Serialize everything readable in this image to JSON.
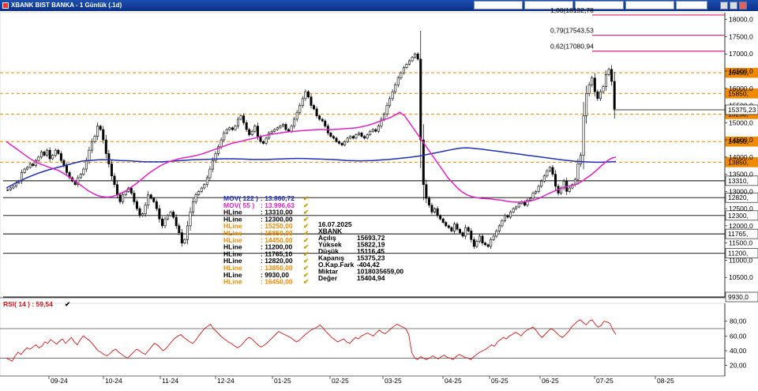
{
  "window": {
    "title": "XBANK BIST BANKA - 1 Günlük (.1d)",
    "toolbar_fields": [
      "",
      "",
      "",
      "",
      "",
      "",
      "",
      ""
    ]
  },
  "colors": {
    "candle": "#000000",
    "mov122": "#1f2fb8",
    "mov55": "#e020c8",
    "fib": "#e0207a",
    "hline_black": "#000000",
    "hline_orange": "#f08a00",
    "rsi": "#d01818",
    "last_price_line": "#000000"
  },
  "indicators": {
    "mov122": {
      "label": "MOV( 122 )",
      "value": "13.860,72"
    },
    "mov55": {
      "label": "MOV( 55 )",
      "value": "13.996,63"
    },
    "hlines": [
      {
        "label": "HLine",
        "value": "13310,00",
        "color": "black"
      },
      {
        "label": "HLine",
        "value": "12300,00",
        "color": "black"
      },
      {
        "label": "HLine",
        "value": "15250,00",
        "color": "orange"
      },
      {
        "label": "HLine",
        "value": "15850,00",
        "color": "orange"
      },
      {
        "label": "HLine",
        "value": "14450,00",
        "color": "orange"
      },
      {
        "label": "HLine",
        "value": "11200,00",
        "color": "black"
      },
      {
        "label": "HLine",
        "value": "11765,10",
        "color": "black"
      },
      {
        "label": "HLine",
        "value": "12820,00",
        "color": "black"
      },
      {
        "label": "HLine",
        "value": "13850,00",
        "color": "orange"
      },
      {
        "label": "HLine",
        "value": "9930,00",
        "color": "black"
      },
      {
        "label": "HLine",
        "value": "16450,00",
        "color": "orange"
      }
    ],
    "check": "✔"
  },
  "ohlc_box": {
    "date": "16.07.2025",
    "symbol": "XBANK",
    "rows": [
      {
        "label": "Açılış",
        "value": "15693,72"
      },
      {
        "label": "Yüksek",
        "value": "15822,19"
      },
      {
        "label": "Düşük",
        "value": "15116,45"
      },
      {
        "label": "Kapanış",
        "value": "15375,23"
      },
      {
        "label": "O.Kap.Fark",
        "value": "-404,42"
      },
      {
        "label": "Miktar",
        "value": "1018035659,00"
      },
      {
        "label": "Değer",
        "value": "15404,94"
      }
    ]
  },
  "rsi_label": "RSI( 14 ) : 59,54",
  "chart_data": {
    "type": "candlestick",
    "price_axis": {
      "range": [
        9930,
        18200
      ],
      "ticks": [
        {
          "v": 18000,
          "label": "18000,0"
        },
        {
          "v": 17500,
          "label": "17500,0"
        },
        {
          "v": 17000,
          "label": "17000,0"
        },
        {
          "v": 16500,
          "label": "16500,0"
        },
        {
          "v": 16000,
          "label": "16000,0"
        },
        {
          "v": 15500,
          "label": "15500,0"
        },
        {
          "v": 15000,
          "label": "15000,0"
        },
        {
          "v": 14500,
          "label": "14500,0"
        },
        {
          "v": 14000,
          "label": "14000,0"
        },
        {
          "v": 13500,
          "label": "13500,0"
        },
        {
          "v": 13000,
          "label": "13000,0"
        },
        {
          "v": 12500,
          "label": "12500,0"
        },
        {
          "v": 12000,
          "label": "12000,0"
        },
        {
          "v": 11500,
          "label": "11500,0"
        },
        {
          "v": 11000,
          "label": "11000,0"
        },
        {
          "v": 10500,
          "label": "10500,0"
        }
      ],
      "current_price_label": "15375,23",
      "current_price": 15375.23
    },
    "hline_levels": [
      {
        "v": 16450,
        "label": "16450,",
        "color": "orange"
      },
      {
        "v": 15850,
        "label": "15850,",
        "color": "orange"
      },
      {
        "v": 15250,
        "label": "15250,",
        "color": "orange"
      },
      {
        "v": 14450,
        "label": "14450,",
        "color": "orange"
      },
      {
        "v": 13850,
        "label": "13850,",
        "color": "orange"
      },
      {
        "v": 13310,
        "label": "13310,",
        "color": "black"
      },
      {
        "v": 12820,
        "label": "12820,",
        "color": "black"
      },
      {
        "v": 12300,
        "label": "12300,",
        "color": "black"
      },
      {
        "v": 11765.1,
        "label": "11765,",
        "color": "black"
      },
      {
        "v": 11200,
        "label": "11200,",
        "color": "black"
      },
      {
        "v": 9930,
        "label": "9930,0",
        "color": "black"
      }
    ],
    "fib_levels": [
      {
        "v": 18132.78,
        "label": "1,00(18132,78"
      },
      {
        "v": 17543.53,
        "label": "0,79(17543,53"
      },
      {
        "v": 17080.94,
        "label": "0,62(17080,94"
      }
    ],
    "x_axis": [
      "09-24",
      "10-24",
      "11-24",
      "12-24",
      "01-25",
      "02-25",
      "03-25",
      "04-25",
      "05-25",
      "06-25",
      "07-25",
      "08-25"
    ],
    "closes": [
      13050,
      13100,
      13150,
      13250,
      13300,
      13550,
      13650,
      13700,
      13800,
      13750,
      13900,
      14000,
      14150,
      14050,
      14200,
      13950,
      14050,
      14200,
      14100,
      13900,
      13750,
      13550,
      13400,
      13300,
      13200,
      13400,
      13500,
      13650,
      13900,
      14200,
      14450,
      14600,
      14900,
      14800,
      14500,
      14100,
      13800,
      13450,
      13200,
      12900,
      12700,
      12900,
      13000,
      13100,
      12950,
      12700,
      12500,
      12300,
      12350,
      12600,
      12900,
      12800,
      12700,
      12500,
      12200,
      12000,
      12200,
      12300,
      12400,
      12250,
      12000,
      11800,
      11500,
      11600,
      12000,
      12400,
      12700,
      12900,
      13000,
      13100,
      13200,
      13400,
      13650,
      13900,
      14100,
      14300,
      14500,
      14700,
      14800,
      14850,
      14800,
      14900,
      15100,
      15200,
      15000,
      14800,
      14650,
      14750,
      14900,
      14600,
      14450,
      14400,
      14550,
      14700,
      14750,
      14800,
      14850,
      14900,
      14950,
      14800,
      14750,
      14900,
      15100,
      15300,
      15500,
      15700,
      15900,
      15750,
      15500,
      15400,
      15200,
      15100,
      15050,
      14900,
      14700,
      14600,
      14550,
      14450,
      14400,
      14350,
      14450,
      14550,
      14600,
      14550,
      14650,
      14700,
      14600,
      14550,
      14650,
      14750,
      14800,
      14750,
      14900,
      15100,
      15250,
      15500,
      15700,
      15900,
      16100,
      16300,
      16450,
      16600,
      16700,
      16800,
      16900,
      17000,
      16850,
      14500,
      13200,
      12800,
      12600,
      12400,
      12500,
      12300,
      12200,
      12100,
      12000,
      11950,
      11850,
      12050,
      11900,
      11800,
      11700,
      11950,
      11850,
      11600,
      11400,
      11550,
      11700,
      11500,
      11450,
      11400,
      11600,
      11700,
      11850,
      12000,
      12150,
      12300,
      12250,
      12400,
      12500,
      12550,
      12650,
      12700,
      12600,
      12750,
      12800,
      12950,
      13000,
      13150,
      13300,
      13450,
      13600,
      13700,
      13500,
      13150,
      12950,
      13100,
      13300,
      13000,
      13100,
      13200,
      13350,
      13800,
      14050,
      15200,
      15850,
      16100,
      16300,
      15900,
      15700,
      15900,
      16050,
      16400,
      16550,
      16200,
      15400
    ],
    "mov122": [
      13100,
      13180,
      13260,
      13330,
      13400,
      13460,
      13520,
      13570,
      13620,
      13660,
      13700,
      13740,
      13780,
      13820,
      13860,
      13890,
      13900,
      13910,
      13920,
      13920,
      13920,
      13910,
      13900,
      13895,
      13890,
      13880,
      13870,
      13860,
      13860,
      13860,
      13860,
      13870,
      13880,
      13890,
      13900,
      13910,
      13920,
      13925,
      13930,
      13935,
      13940,
      13945,
      13950,
      13950,
      13950,
      13945,
      13940,
      13935,
      13930,
      13930,
      13930,
      13935,
      13940,
      13945,
      13950,
      13955,
      13960,
      13960,
      13955,
      13950,
      13945,
      13940,
      13935,
      13930,
      13920,
      13910,
      13900,
      13895,
      13890,
      13890,
      13895,
      13900,
      13910,
      13920,
      13930,
      13945,
      13960,
      13975,
      13990,
      14010,
      14030,
      14060,
      14090,
      14120,
      14150,
      14180,
      14210,
      14240,
      14260,
      14270,
      14260,
      14245,
      14230,
      14210,
      14190,
      14170,
      14150,
      14130,
      14110,
      14090,
      14070,
      14050,
      14030,
      14010,
      13990,
      13970,
      13950,
      13930,
      13910,
      13895,
      13880,
      13870,
      13860,
      13855,
      13850,
      13850,
      13855,
      13860,
      13870
    ],
    "mov55": [
      14450,
      14350,
      14250,
      14150,
      14050,
      13950,
      13870,
      13800,
      13750,
      13700,
      13650,
      13600,
      13520,
      13430,
      13330,
      13230,
      13130,
      13030,
      12950,
      12880,
      12850,
      12830,
      12850,
      12890,
      12950,
      13030,
      13120,
      13220,
      13330,
      13450,
      13560,
      13650,
      13740,
      13810,
      13870,
      13910,
      13950,
      13980,
      14000,
      14030,
      14060,
      14100,
      14150,
      14200,
      14250,
      14300,
      14350,
      14400,
      14430,
      14460,
      14500,
      14530,
      14560,
      14600,
      14630,
      14660,
      14680,
      14700,
      14720,
      14740,
      14750,
      14760,
      14770,
      14780,
      14790,
      14800,
      14800,
      14800,
      14800,
      14810,
      14820,
      14830,
      14840,
      14850,
      14880,
      14910,
      14950,
      15000,
      15050,
      15100,
      15150,
      15220,
      15300,
      15200,
      15000,
      14800,
      14600,
      14400,
      14200,
      14000,
      13800,
      13600,
      13400,
      13250,
      13100,
      12980,
      12900,
      12850,
      12820,
      12800,
      12790,
      12780,
      12760,
      12750,
      12720,
      12700,
      12690,
      12690,
      12700,
      12720,
      12750,
      12800,
      12870,
      12940,
      13000,
      13060,
      13110,
      13150,
      13180,
      13220,
      13300,
      13400,
      13500,
      13620,
      13750,
      13870,
      13960,
      14000
    ],
    "rsi": {
      "range": [
        10,
        100
      ],
      "ticks": [
        {
          "v": 80,
          "label": "80,00"
        },
        {
          "v": 60,
          "label": "60,00"
        },
        {
          "v": 40,
          "label": "40,00"
        },
        {
          "v": 20,
          "label": "20,00"
        }
      ],
      "levels": [
        70,
        30
      ],
      "values": [
        30,
        28,
        26,
        33,
        38,
        35,
        40,
        44,
        42,
        45,
        48,
        44,
        46,
        52,
        50,
        55,
        52,
        49,
        53,
        56,
        50,
        54,
        58,
        52,
        48,
        55,
        60,
        57,
        54,
        50,
        45,
        40,
        38,
        35,
        33,
        36,
        40,
        42,
        38,
        35,
        32,
        30,
        34,
        38,
        42,
        40,
        37,
        35,
        40,
        45,
        50,
        48,
        44,
        40,
        43,
        48,
        53,
        57,
        60,
        62,
        58,
        55,
        52,
        50,
        54,
        60,
        65,
        70,
        73,
        76,
        70,
        66,
        62,
        58,
        55,
        52,
        50,
        47,
        44,
        46,
        50,
        55,
        58,
        56,
        52,
        48,
        45,
        47,
        50,
        54,
        58,
        62,
        66,
        64,
        62,
        60,
        58,
        55,
        52,
        54,
        58,
        62,
        65,
        68,
        70,
        72,
        75,
        71,
        66,
        62,
        58,
        55,
        52,
        54,
        56,
        52,
        50,
        54,
        58,
        56,
        60,
        62,
        64,
        62,
        60,
        64,
        68,
        65,
        63,
        66,
        70,
        73,
        76,
        74,
        72,
        70,
        62,
        38,
        30,
        28,
        32,
        30,
        28,
        30,
        33,
        31,
        29,
        32,
        34,
        31,
        30,
        28,
        32,
        35,
        33,
        31,
        30,
        28,
        32,
        35,
        38,
        40,
        42,
        45,
        48,
        46,
        52,
        55,
        58,
        56,
        60,
        62,
        65,
        63,
        60,
        65,
        68,
        70,
        72,
        68,
        62,
        58,
        62,
        66,
        70,
        68,
        64,
        60,
        58,
        62,
        66,
        72,
        76,
        80,
        82,
        78,
        75,
        80,
        82,
        76,
        72,
        74,
        80,
        79,
        77,
        68,
        62
      ]
    }
  }
}
